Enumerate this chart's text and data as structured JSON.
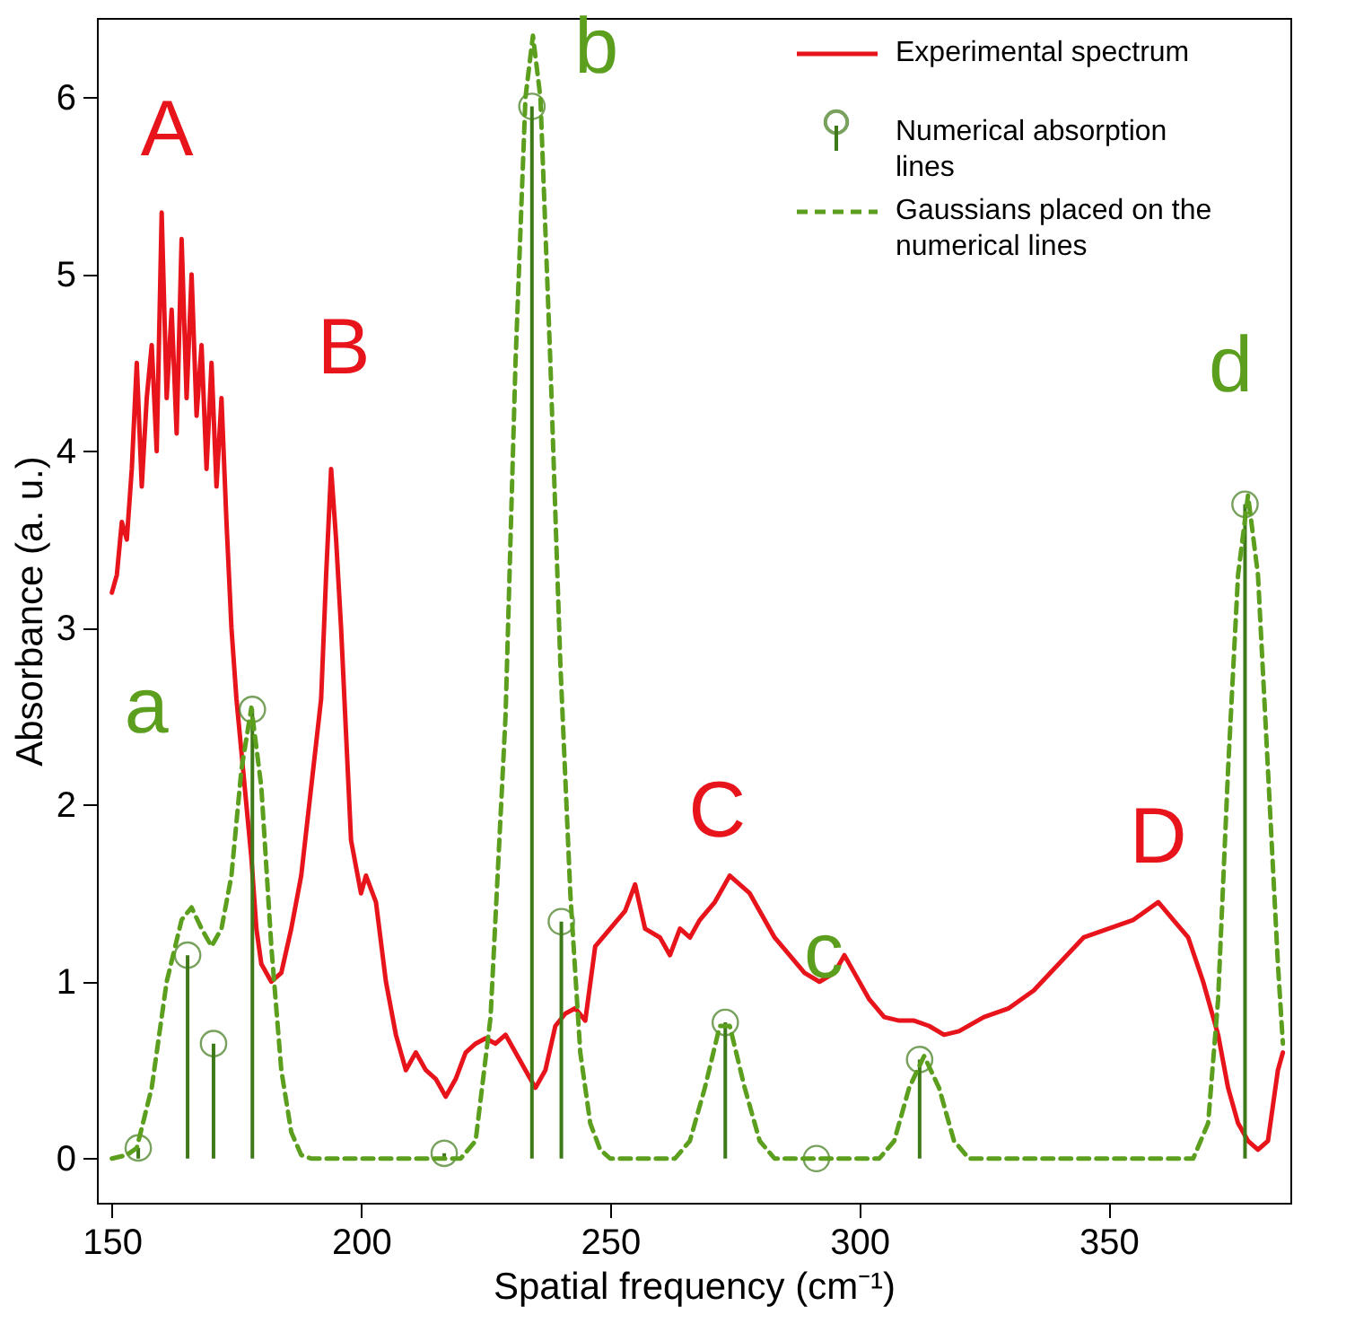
{
  "chart_data": {
    "type": "line",
    "xlabel": "Spatial frequency (cm⁻¹)",
    "ylabel": "Absorbance (a. u.)",
    "xlim": [
      147,
      386.5
    ],
    "ylim": [
      -0.25,
      6.45
    ],
    "xticks": [
      150,
      200,
      250,
      300,
      350
    ],
    "yticks": [
      0,
      1,
      2,
      3,
      4,
      5,
      6
    ],
    "grid": false,
    "legend": "top right",
    "series": [
      {
        "name": "Experimental spectrum",
        "type": "line",
        "color": "#e8141c",
        "line_style": "solid",
        "marker": "none",
        "x": [
          150,
          151,
          152,
          153,
          154,
          155,
          156,
          157,
          158,
          159,
          160,
          161,
          162,
          163,
          164,
          165,
          166,
          167,
          168,
          169,
          170,
          171,
          172,
          173,
          174,
          175,
          176,
          177,
          178,
          179,
          180,
          182,
          184,
          186,
          188,
          190,
          192,
          193,
          194,
          195,
          196,
          197,
          198,
          200,
          201,
          203,
          205,
          207,
          209,
          211,
          213,
          215,
          217,
          219,
          221,
          223,
          225,
          227,
          229,
          231,
          233,
          235,
          237,
          239,
          241,
          243,
          245,
          247,
          250,
          253,
          255,
          257,
          260,
          262,
          264,
          266,
          268,
          271,
          274,
          276,
          278,
          280,
          283,
          286,
          289,
          292,
          295,
          297,
          299,
          302,
          305,
          308,
          311,
          314,
          317,
          320,
          325,
          330,
          335,
          340,
          345,
          350,
          355,
          360,
          363,
          366,
          369,
          372,
          374,
          376,
          378,
          380,
          382,
          384,
          385
        ],
        "values": [
          3.2,
          3.3,
          3.6,
          3.5,
          3.9,
          4.5,
          3.8,
          4.3,
          4.6,
          4.0,
          5.35,
          4.3,
          4.8,
          4.1,
          5.2,
          4.3,
          5.0,
          4.2,
          4.6,
          3.9,
          4.5,
          3.8,
          4.3,
          3.6,
          3.0,
          2.6,
          2.3,
          2.0,
          1.7,
          1.3,
          1.1,
          1.0,
          1.05,
          1.3,
          1.6,
          2.1,
          2.6,
          3.3,
          3.9,
          3.5,
          3.0,
          2.4,
          1.8,
          1.5,
          1.6,
          1.45,
          1.0,
          0.7,
          0.5,
          0.6,
          0.5,
          0.45,
          0.35,
          0.45,
          0.6,
          0.65,
          0.68,
          0.65,
          0.7,
          0.6,
          0.5,
          0.4,
          0.5,
          0.75,
          0.82,
          0.85,
          0.78,
          1.2,
          1.3,
          1.4,
          1.55,
          1.3,
          1.25,
          1.15,
          1.3,
          1.25,
          1.35,
          1.45,
          1.6,
          1.55,
          1.5,
          1.4,
          1.25,
          1.15,
          1.05,
          1.0,
          1.05,
          1.15,
          1.05,
          0.9,
          0.8,
          0.78,
          0.78,
          0.75,
          0.7,
          0.72,
          0.8,
          0.85,
          0.95,
          1.1,
          1.25,
          1.3,
          1.35,
          1.45,
          1.35,
          1.25,
          1.0,
          0.7,
          0.4,
          0.2,
          0.1,
          0.05,
          0.1,
          0.5,
          0.6
        ]
      },
      {
        "name": "Numerical absorption lines",
        "type": "lollipop",
        "color": "#3f7a1a",
        "marker": "circle",
        "x": [
          155.3,
          165.2,
          170.4,
          178.2,
          216.7,
          234.3,
          240.2,
          273.1,
          291.4,
          312.1,
          377.4
        ],
        "values": [
          0.06,
          1.15,
          0.65,
          2.54,
          0.03,
          5.95,
          1.34,
          0.77,
          0.0,
          0.56,
          3.7
        ]
      },
      {
        "name": "Gaussians placed on the numerical lines",
        "type": "line",
        "color": "#5c9e1e",
        "line_style": "dashed",
        "marker": "none",
        "x": [
          150,
          153,
          155,
          158,
          161,
          164,
          166,
          168,
          170,
          172,
          174,
          176,
          178,
          180,
          182,
          184,
          186,
          188,
          190,
          220,
          223,
          226,
          229,
          231,
          233,
          234.5,
          236,
          238,
          240,
          242,
          244,
          246,
          248,
          250,
          263,
          266,
          269,
          272,
          274,
          277,
          280,
          283,
          304,
          307,
          310,
          313,
          316,
          319,
          322,
          367,
          370,
          372,
          374,
          376,
          378,
          380,
          382,
          384,
          385
        ],
        "values": [
          0,
          0.02,
          0.06,
          0.4,
          1.0,
          1.35,
          1.42,
          1.3,
          1.2,
          1.3,
          1.6,
          2.2,
          2.55,
          2.1,
          1.2,
          0.5,
          0.15,
          0.02,
          0,
          0,
          0.1,
          0.8,
          2.5,
          4.5,
          6.0,
          6.35,
          6.0,
          4.5,
          2.8,
          1.5,
          0.6,
          0.2,
          0.05,
          0,
          0,
          0.1,
          0.4,
          0.75,
          0.75,
          0.4,
          0.1,
          0,
          0,
          0.1,
          0.4,
          0.58,
          0.4,
          0.1,
          0,
          0,
          0.2,
          0.9,
          2.2,
          3.3,
          3.75,
          3.3,
          2.2,
          1.1,
          0.65
        ]
      }
    ],
    "annotations": [
      {
        "text": "A",
        "x": 160,
        "y": 5.35
      },
      {
        "text": "B",
        "x": 194,
        "y": 3.9
      },
      {
        "text": "C",
        "x": 274,
        "y": 1.6
      },
      {
        "text": "D",
        "x": 360,
        "y": 1.45
      },
      {
        "text": "a",
        "x": 178.2,
        "y": 2.54
      },
      {
        "text": "b",
        "x": 234.3,
        "y": 5.95
      },
      {
        "text": "c",
        "x": 291.4,
        "y": 0.0
      },
      {
        "text": "d",
        "x": 377.4,
        "y": 3.7
      }
    ]
  }
}
